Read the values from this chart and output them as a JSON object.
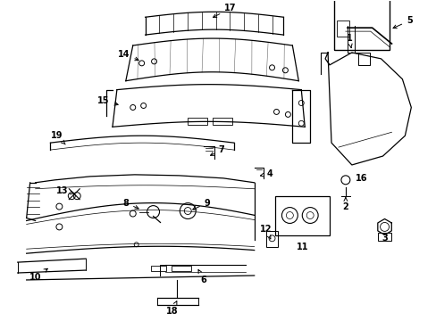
{
  "bg_color": "#ffffff",
  "line_color": "#000000",
  "figsize": [
    4.89,
    3.6
  ],
  "dpi": 100,
  "xlim": [
    0,
    489
  ],
  "ylim": [
    0,
    360
  ]
}
